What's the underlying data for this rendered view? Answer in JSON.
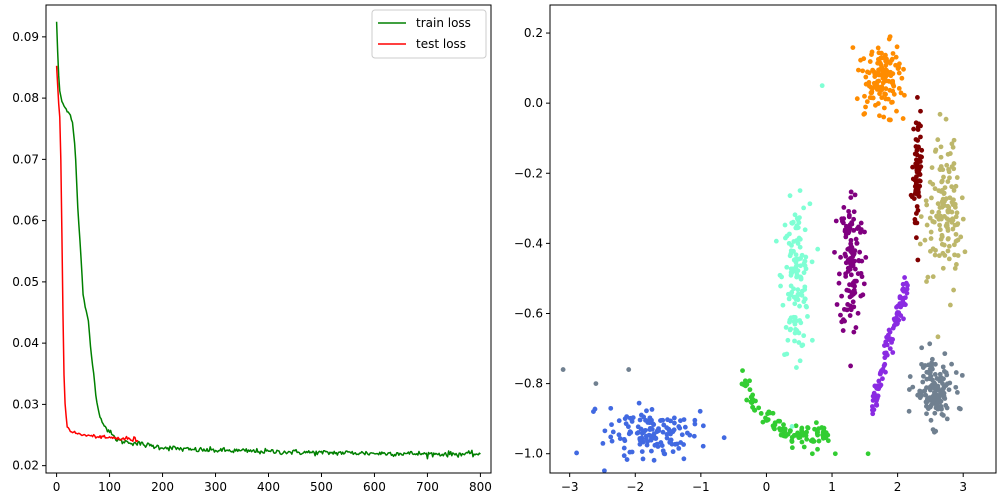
{
  "chart_data": [
    {
      "type": "line",
      "title": "",
      "xlabel": "",
      "ylabel": "",
      "xlim": [
        -20,
        820
      ],
      "ylim": [
        0.0188,
        0.0952
      ],
      "xticks": [
        0,
        100,
        200,
        300,
        400,
        500,
        600,
        700,
        800
      ],
      "xtick_labels": [
        "0",
        "100",
        "200",
        "300",
        "400",
        "500",
        "600",
        "700",
        "800"
      ],
      "yticks": [
        0.02,
        0.03,
        0.04,
        0.05,
        0.06,
        0.07,
        0.08,
        0.09
      ],
      "ytick_labels": [
        "0.02",
        "0.03",
        "0.04",
        "0.05",
        "0.06",
        "0.07",
        "0.08",
        "0.09"
      ],
      "grid": false,
      "legend": "upper-right",
      "series": [
        {
          "name": "train loss",
          "color": "#008000",
          "x": [
            0,
            3,
            6,
            10,
            15,
            20,
            25,
            30,
            35,
            40,
            45,
            50,
            55,
            60,
            65,
            70,
            75,
            80,
            90,
            100,
            110,
            120,
            140,
            160,
            180,
            200,
            250,
            300,
            350,
            400,
            450,
            500,
            550,
            600,
            650,
            700,
            750,
            800
          ],
          "y": [
            0.0925,
            0.085,
            0.081,
            0.0795,
            0.0785,
            0.078,
            0.0775,
            0.076,
            0.072,
            0.062,
            0.0555,
            0.048,
            0.0455,
            0.0435,
            0.0385,
            0.035,
            0.031,
            0.0285,
            0.0265,
            0.0255,
            0.0245,
            0.024,
            0.0238,
            0.0235,
            0.0232,
            0.023,
            0.0226,
            0.0225,
            0.0224,
            0.0223,
            0.0222,
            0.0221,
            0.0221,
            0.022,
            0.022,
            0.0219,
            0.0219,
            0.0219
          ]
        },
        {
          "name": "test loss",
          "color": "#ff0000",
          "x": [
            0,
            2,
            4,
            6,
            8,
            10,
            12,
            14,
            16,
            18,
            20,
            25,
            30,
            40,
            50,
            60,
            70,
            80,
            90,
            100,
            110,
            120,
            130,
            140,
            150,
            155
          ],
          "y": [
            0.085,
            0.082,
            0.079,
            0.077,
            0.07,
            0.058,
            0.045,
            0.035,
            0.03,
            0.028,
            0.0265,
            0.0258,
            0.0255,
            0.0252,
            0.025,
            0.0249,
            0.0248,
            0.0247,
            0.0246,
            0.0245,
            0.0245,
            0.0244,
            0.0244,
            0.0243,
            0.0242,
            0.0242
          ]
        }
      ]
    },
    {
      "type": "scatter",
      "title": "",
      "xlabel": "",
      "ylabel": "",
      "xlim": [
        -3.3,
        3.5
      ],
      "ylim": [
        -1.055,
        0.28
      ],
      "xticks": [
        -3,
        -2,
        -1,
        0,
        1,
        2,
        3
      ],
      "xtick_labels": [
        "−3",
        "−2",
        "−1",
        "0",
        "1",
        "2",
        "3"
      ],
      "yticks": [
        -1.0,
        -0.8,
        -0.6,
        -0.4,
        -0.2,
        0.0,
        0.2
      ],
      "ytick_labels": [
        "−1.0",
        "−0.8",
        "−0.6",
        "−0.4",
        "−0.2",
        "0.0",
        "0.2"
      ],
      "grid": false,
      "clusters": [
        {
          "color": "#4169e1",
          "cx": -1.75,
          "cy": -0.94,
          "sx": 0.45,
          "sy": 0.05,
          "n": 140,
          "extra": [
            [
              -3.1,
              -0.76
            ],
            [
              -2.1,
              -0.76
            ],
            [
              -2.6,
              -0.8
            ]
          ],
          "extra_color": "#708090"
        },
        {
          "color": "#32cd32",
          "cx": 0.2,
          "cy": -0.9,
          "sx": 0.4,
          "sy": 0.04,
          "n": 110,
          "curve": "green"
        },
        {
          "color": "#7fffd4",
          "cx": 0.45,
          "cy": -0.5,
          "sx": 0.14,
          "sy": 0.14,
          "n": 130
        },
        {
          "color": "#800080",
          "cx": 1.3,
          "cy": -0.45,
          "sx": 0.12,
          "sy": 0.14,
          "n": 130
        },
        {
          "color": "#8a2be2",
          "cx": 1.9,
          "cy": -0.7,
          "sx": 0.1,
          "sy": 0.1,
          "n": 90,
          "curve": "violet"
        },
        {
          "color": "#ff8c00",
          "cx": 1.75,
          "cy": 0.07,
          "sx": 0.22,
          "sy": 0.07,
          "n": 130
        },
        {
          "color": "#800000",
          "cx": 2.3,
          "cy": -0.2,
          "sx": 0.04,
          "sy": 0.11,
          "n": 80
        },
        {
          "color": "#bdb76b",
          "cx": 2.72,
          "cy": -0.3,
          "sx": 0.17,
          "sy": 0.13,
          "n": 140
        },
        {
          "color": "#708090",
          "cx": 2.55,
          "cy": -0.82,
          "sx": 0.2,
          "sy": 0.06,
          "n": 140
        }
      ],
      "outliers": [
        [
          0.85,
          0.05,
          "#7fffd4"
        ],
        [
          0.7,
          -1.0,
          "#32cd32"
        ],
        [
          1.05,
          -1.0,
          "#32cd32"
        ],
        [
          1.55,
          -1.0,
          "#32cd32"
        ]
      ]
    }
  ]
}
